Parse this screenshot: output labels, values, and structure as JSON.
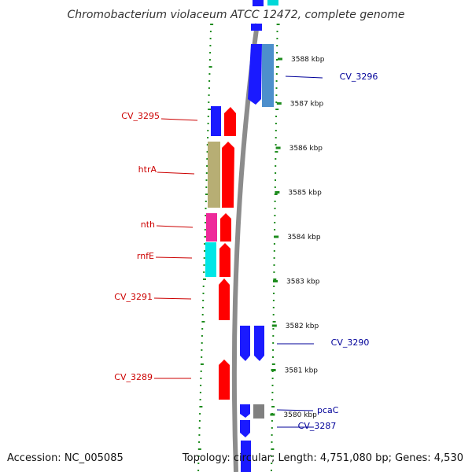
{
  "title": "Chromobacterium violaceum ATCC 12472, complete genome",
  "footer": {
    "accession": "Accession: NC_005085",
    "summary": "Topology: circular; Length: 4,751,080 bp; Genes: 4,530"
  },
  "colors": {
    "backbone": "#8c8c8c",
    "dots": "#1e8c1e",
    "forward_label": "#cc0000",
    "reverse_label": "#000099"
  },
  "ticks": [
    {
      "kb": 3588,
      "label": "3588 kbp"
    },
    {
      "kb": 3587,
      "label": "3587 kbp"
    },
    {
      "kb": 3586,
      "label": "3586 kbp"
    },
    {
      "kb": 3585,
      "label": "3585 kbp"
    },
    {
      "kb": 3584,
      "label": "3584 kbp"
    },
    {
      "kb": 3583,
      "label": "3583 kbp"
    },
    {
      "kb": 3582,
      "label": "3582 kbp"
    },
    {
      "kb": 3581,
      "label": "3581 kbp"
    },
    {
      "kb": 3580,
      "label": "3580 kbp"
    }
  ],
  "labels": [
    {
      "text": "CV_3296",
      "side": "right",
      "gene": "cv3296"
    },
    {
      "text": "CV_3295",
      "side": "left",
      "gene": "cv3295"
    },
    {
      "text": "htrA",
      "side": "left",
      "gene": "htrA"
    },
    {
      "text": "nth",
      "side": "left",
      "gene": "nth"
    },
    {
      "text": "rnfE",
      "side": "left",
      "gene": "rnfE"
    },
    {
      "text": "CV_3291",
      "side": "left",
      "gene": "cv3291"
    },
    {
      "text": "CV_3290",
      "side": "right",
      "gene": "cv3290"
    },
    {
      "text": "CV_3289",
      "side": "left",
      "gene": "cv3289"
    },
    {
      "text": "pcaC",
      "side": "right",
      "gene": "pcaC"
    },
    {
      "text": "CV_3287",
      "side": "right",
      "gene": "cv3287"
    }
  ]
}
